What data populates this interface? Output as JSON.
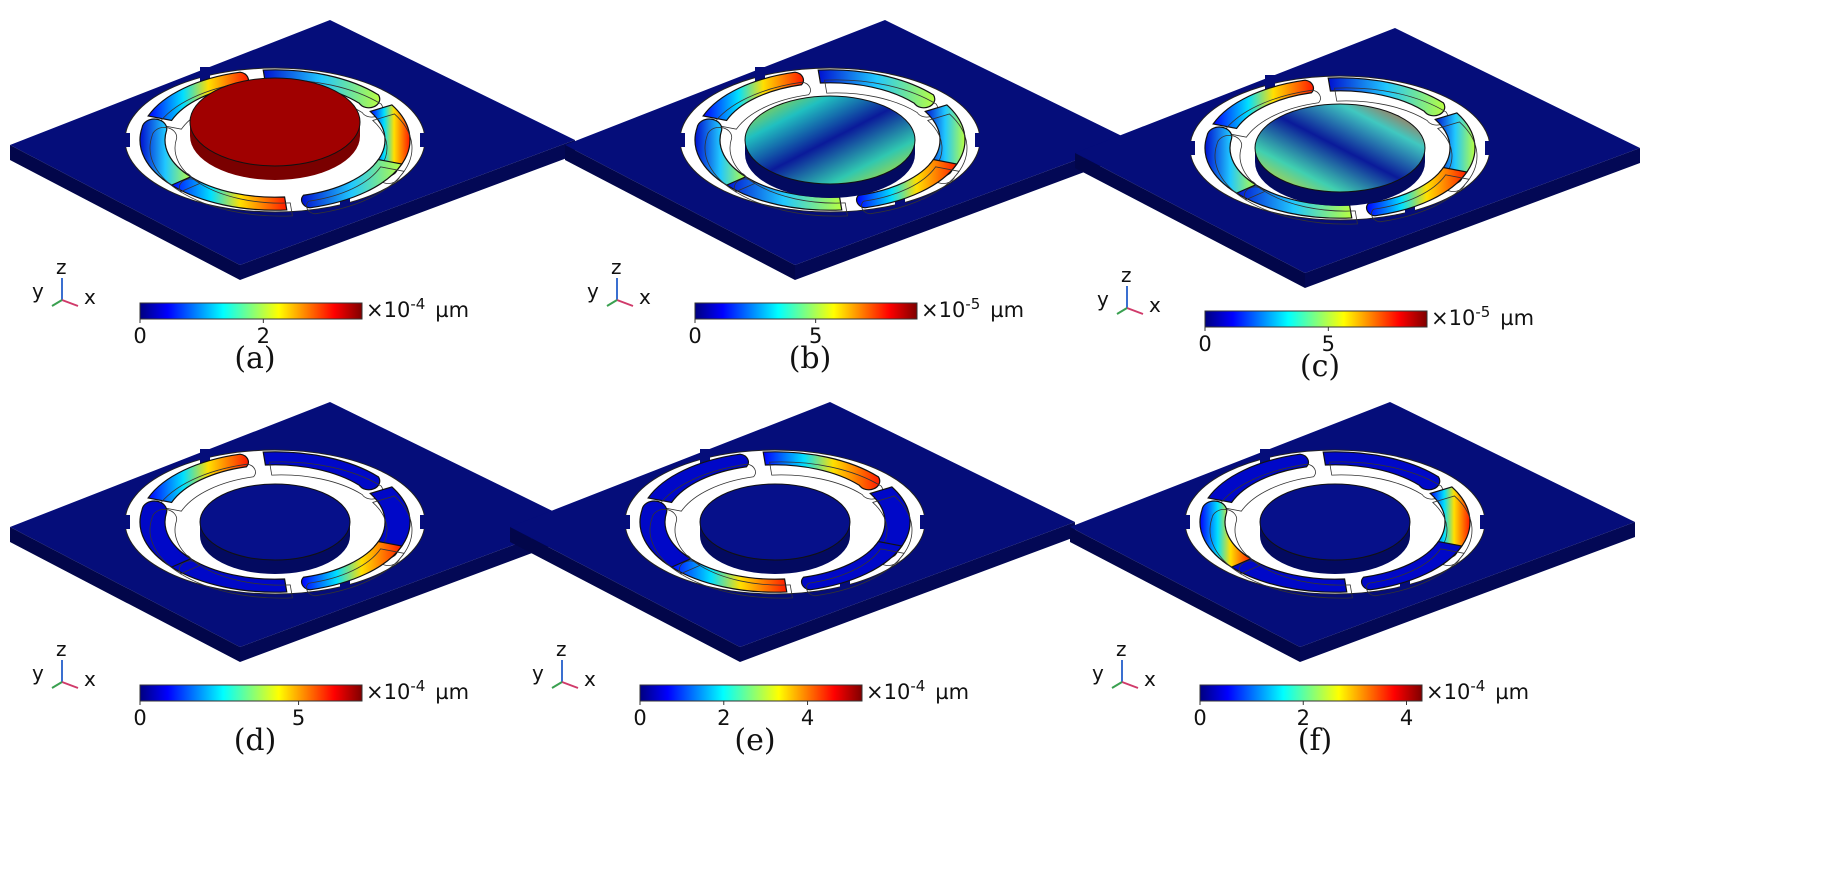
{
  "panels": [
    {
      "caption": "(a)",
      "mode": "disc-up",
      "colorbar": {
        "ticks": [
          {
            "value": 0,
            "label": "0"
          },
          {
            "value": 2,
            "label": "2"
          }
        ],
        "max": 3.6,
        "multiplier": "×10",
        "exponent": "-4",
        "unit": "µm"
      }
    },
    {
      "caption": "(b)",
      "mode": "tilt",
      "colorbar": {
        "ticks": [
          {
            "value": 0,
            "label": "0"
          },
          {
            "value": 5,
            "label": "5"
          }
        ],
        "max": 9.2,
        "multiplier": "×10",
        "exponent": "-5",
        "unit": "µm"
      }
    },
    {
      "caption": "(c)",
      "mode": "tilt",
      "colorbar": {
        "ticks": [
          {
            "value": 0,
            "label": "0"
          },
          {
            "value": 5,
            "label": "5"
          }
        ],
        "max": 9.0,
        "multiplier": "×10",
        "exponent": "-5",
        "unit": "µm"
      }
    },
    {
      "caption": "(d)",
      "mode": "springs",
      "colorbar": {
        "ticks": [
          {
            "value": 0,
            "label": "0"
          },
          {
            "value": 5,
            "label": "5"
          }
        ],
        "max": 7.0,
        "multiplier": "×10",
        "exponent": "-4",
        "unit": "µm"
      }
    },
    {
      "caption": "(e)",
      "mode": "springs",
      "colorbar": {
        "ticks": [
          {
            "value": 0,
            "label": "0"
          },
          {
            "value": 2,
            "label": "2"
          },
          {
            "value": 4,
            "label": "4"
          }
        ],
        "max": 5.3,
        "multiplier": "×10",
        "exponent": "-4",
        "unit": "µm"
      }
    },
    {
      "caption": "(f)",
      "mode": "springs",
      "colorbar": {
        "ticks": [
          {
            "value": 0,
            "label": "0"
          },
          {
            "value": 2,
            "label": "2"
          },
          {
            "value": 4,
            "label": "4"
          }
        ],
        "max": 4.3,
        "multiplier": "×10",
        "exponent": "-4",
        "unit": "µm"
      }
    }
  ],
  "axis_triad": {
    "x": "x",
    "y": "y",
    "z": "z"
  },
  "colors": {
    "plate": "#050d7a",
    "plate_side": "#02064a",
    "hole": "#ffffff",
    "dark_red": "#a00000"
  }
}
